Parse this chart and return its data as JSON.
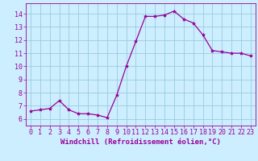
{
  "x": [
    0,
    1,
    2,
    3,
    4,
    5,
    6,
    7,
    8,
    9,
    10,
    11,
    12,
    13,
    14,
    15,
    16,
    17,
    18,
    19,
    20,
    21,
    22,
    23
  ],
  "y": [
    6.6,
    6.7,
    6.8,
    7.4,
    6.7,
    6.4,
    6.4,
    6.3,
    6.1,
    7.8,
    10.0,
    11.9,
    13.8,
    13.8,
    13.9,
    14.2,
    13.6,
    13.3,
    12.4,
    11.2,
    11.1,
    11.0,
    11.0,
    10.8
  ],
  "line_color": "#990099",
  "marker": "*",
  "marker_size": 3,
  "bg_color": "#cceeff",
  "grid_color": "#99ccdd",
  "xlabel": "Windchill (Refroidissement éolien,°C)",
  "xlabel_color": "#990099",
  "xlabel_fontsize": 6.5,
  "tick_color": "#990099",
  "tick_fontsize": 6,
  "ylim": [
    5.5,
    14.8
  ],
  "yticks": [
    6,
    7,
    8,
    9,
    10,
    11,
    12,
    13,
    14
  ],
  "xlim": [
    -0.5,
    23.5
  ],
  "xticks": [
    0,
    1,
    2,
    3,
    4,
    5,
    6,
    7,
    8,
    9,
    10,
    11,
    12,
    13,
    14,
    15,
    16,
    17,
    18,
    19,
    20,
    21,
    22,
    23
  ]
}
